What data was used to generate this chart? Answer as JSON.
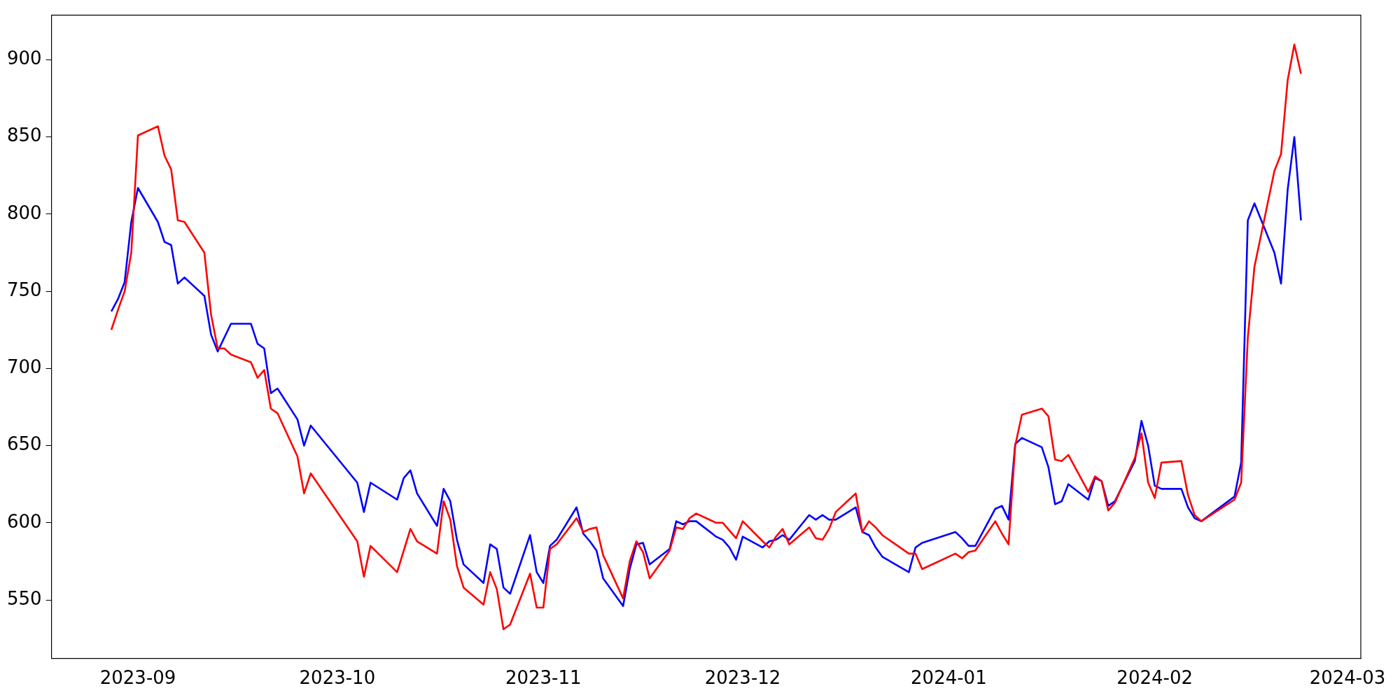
{
  "chart_data": {
    "type": "line",
    "x": [
      "2023-08-28",
      "2023-08-29",
      "2023-08-30",
      "2023-08-31",
      "2023-09-01",
      "2023-09-04",
      "2023-09-05",
      "2023-09-06",
      "2023-09-07",
      "2023-09-08",
      "2023-09-11",
      "2023-09-12",
      "2023-09-13",
      "2023-09-14",
      "2023-09-15",
      "2023-09-18",
      "2023-09-19",
      "2023-09-20",
      "2023-09-21",
      "2023-09-22",
      "2023-09-25",
      "2023-09-26",
      "2023-09-27",
      "2023-10-04",
      "2023-10-05",
      "2023-10-06",
      "2023-10-10",
      "2023-10-11",
      "2023-10-12",
      "2023-10-13",
      "2023-10-16",
      "2023-10-17",
      "2023-10-18",
      "2023-10-19",
      "2023-10-20",
      "2023-10-23",
      "2023-10-24",
      "2023-10-25",
      "2023-10-26",
      "2023-10-27",
      "2023-10-30",
      "2023-10-31",
      "2023-11-01",
      "2023-11-02",
      "2023-11-03",
      "2023-11-06",
      "2023-11-07",
      "2023-11-08",
      "2023-11-09",
      "2023-11-10",
      "2023-11-13",
      "2023-11-14",
      "2023-11-15",
      "2023-11-16",
      "2023-11-17",
      "2023-11-20",
      "2023-11-21",
      "2023-11-22",
      "2023-11-23",
      "2023-11-24",
      "2023-11-27",
      "2023-11-28",
      "2023-11-29",
      "2023-11-30",
      "2023-12-01",
      "2023-12-04",
      "2023-12-05",
      "2023-12-06",
      "2023-12-07",
      "2023-12-08",
      "2023-12-11",
      "2023-12-12",
      "2023-12-13",
      "2023-12-14",
      "2023-12-15",
      "2023-12-18",
      "2023-12-19",
      "2023-12-20",
      "2023-12-21",
      "2023-12-22",
      "2023-12-26",
      "2023-12-27",
      "2023-12-28",
      "2024-01-02",
      "2024-01-03",
      "2024-01-04",
      "2024-01-05",
      "2024-01-08",
      "2024-01-09",
      "2024-01-10",
      "2024-01-11",
      "2024-01-12",
      "2024-01-15",
      "2024-01-16",
      "2024-01-17",
      "2024-01-18",
      "2024-01-19",
      "2024-01-22",
      "2024-01-23",
      "2024-01-24",
      "2024-01-25",
      "2024-01-26",
      "2024-01-29",
      "2024-01-30",
      "2024-01-31",
      "2024-02-01",
      "2024-02-02",
      "2024-02-05",
      "2024-02-06",
      "2024-02-07",
      "2024-02-08",
      "2024-02-13",
      "2024-02-14",
      "2024-02-15",
      "2024-02-16",
      "2024-02-19",
      "2024-02-20",
      "2024-02-21",
      "2024-02-22",
      "2024-02-23"
    ],
    "series": [
      {
        "color": "#ff0000",
        "values": [
          725,
          738,
          750,
          775,
          851,
          857,
          838,
          829,
          796,
          795,
          775,
          735,
          713,
          713,
          709,
          704,
          694,
          699,
          674,
          671,
          643,
          619,
          632,
          588,
          565,
          585,
          568,
          582,
          596,
          588,
          580,
          614,
          602,
          572,
          558,
          547,
          568,
          557,
          531,
          534,
          567,
          545,
          545,
          583,
          586,
          603,
          594,
          596,
          597,
          579,
          551,
          575,
          588,
          581,
          564,
          582,
          597,
          596,
          603,
          606,
          600,
          600,
          595,
          590,
          601,
          588,
          584,
          591,
          596,
          586,
          597,
          590,
          589,
          596,
          607,
          619,
          594,
          601,
          597,
          592,
          580,
          580,
          570,
          580,
          577,
          581,
          582,
          601,
          593,
          586,
          650,
          670,
          674,
          669,
          641,
          640,
          644,
          620,
          630,
          627,
          608,
          613,
          642,
          658,
          626,
          616,
          639,
          640,
          618,
          605,
          601,
          615,
          626,
          720,
          766,
          828,
          839,
          887,
          910,
          891
        ]
      },
      {
        "color": "#0000ff",
        "values": [
          737,
          745,
          756,
          795,
          817,
          795,
          782,
          780,
          755,
          759,
          747,
          722,
          711,
          720,
          729,
          729,
          716,
          713,
          684,
          687,
          667,
          650,
          663,
          626,
          607,
          626,
          615,
          629,
          634,
          619,
          598,
          622,
          614,
          589,
          573,
          561,
          586,
          583,
          558,
          554,
          592,
          568,
          561,
          585,
          589,
          610,
          593,
          588,
          582,
          564,
          546,
          570,
          586,
          587,
          573,
          583,
          601,
          599,
          601,
          601,
          591,
          589,
          584,
          576,
          591,
          584,
          588,
          589,
          592,
          589,
          605,
          602,
          605,
          602,
          602,
          610,
          594,
          592,
          584,
          578,
          568,
          584,
          587,
          594,
          590,
          585,
          585,
          609,
          611,
          602,
          651,
          655,
          649,
          636,
          612,
          614,
          625,
          615,
          629,
          627,
          611,
          614,
          640,
          666,
          650,
          624,
          622,
          622,
          610,
          603,
          601,
          617,
          639,
          796,
          807,
          775,
          755,
          816,
          850,
          796
        ]
      }
    ],
    "xlim": [
      "2023-08-19",
      "2024-03-03"
    ],
    "xticks": [
      "2023-09",
      "2023-10",
      "2023-11",
      "2023-12",
      "2024-01",
      "2024-02",
      "2024-03"
    ],
    "ylim": [
      512,
      929
    ],
    "yticks": [
      550,
      600,
      650,
      700,
      750,
      800,
      850,
      900
    ],
    "grid": false,
    "legend": false,
    "marker": "none",
    "line_style": "solid"
  }
}
